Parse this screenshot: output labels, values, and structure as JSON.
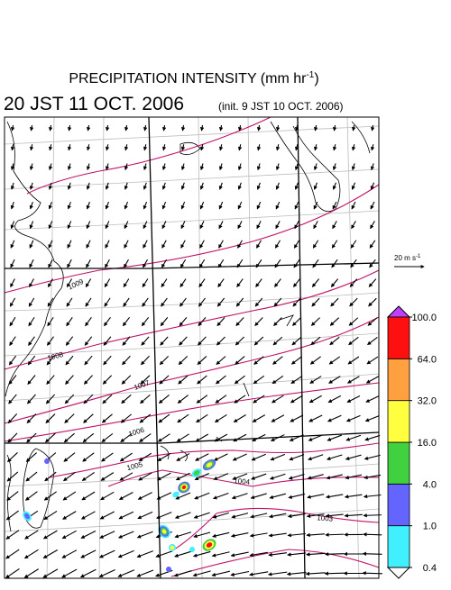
{
  "title": {
    "main": "PRECIPITATION INTENSITY (mm hr",
    "exponent": "-1",
    "end": ")"
  },
  "valid_time": "20 JST 11 OCT. 2006",
  "init_time": "(init. 9 JST 10 OCT. 2006)",
  "vector_scale": {
    "label": "20 m s",
    "exponent": "-1"
  },
  "colorbar": {
    "levels": [
      {
        "value": 0.4,
        "label": "0.4"
      },
      {
        "value": 1,
        "label": "1.0"
      },
      {
        "value": 4,
        "label": "4.0"
      },
      {
        "value": 16,
        "label": "16.0"
      },
      {
        "value": 32,
        "label": "32.0"
      },
      {
        "value": 64,
        "label": "64.0"
      },
      {
        "value": 100,
        "label": "100.0"
      }
    ],
    "colors": [
      "#40f0ff",
      "#6464ff",
      "#40d040",
      "#ffff40",
      "#ffa040",
      "#ff1010"
    ],
    "over_color": "#c040ff",
    "under_color": "#ffffff"
  },
  "isobar_labels": [
    "1009",
    "1008",
    "1007",
    "1006",
    "1005",
    "1004",
    "1003"
  ]
}
